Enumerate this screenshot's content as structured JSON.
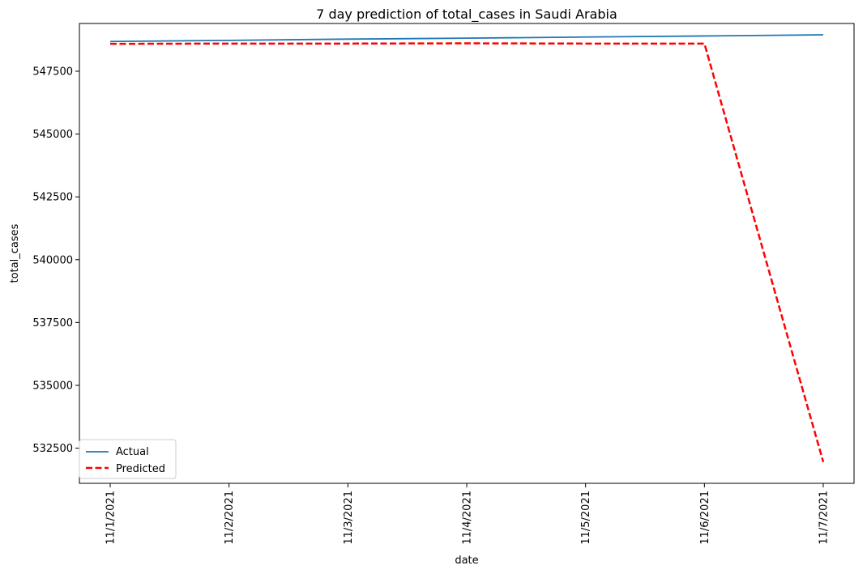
{
  "chart_data": {
    "type": "line",
    "title": "7 day prediction of total_cases in Saudi Arabia",
    "xlabel": "date",
    "ylabel": "total_cases",
    "categories": [
      "11/1/2021",
      "11/2/2021",
      "11/3/2021",
      "11/4/2021",
      "11/5/2021",
      "11/6/2021",
      "11/7/2021"
    ],
    "yticks": [
      532500,
      535000,
      537500,
      540000,
      542500,
      545000,
      547500
    ],
    "ylim": [
      531100,
      549400
    ],
    "grid": false,
    "legend_position": "lower-left",
    "series": [
      {
        "name": "Actual",
        "values": [
          548683,
          548728,
          548778,
          548815,
          548860,
          548903,
          548950
        ],
        "color": "#1f77b4",
        "style": "solid"
      },
      {
        "name": "Predicted",
        "values": [
          548590,
          548600,
          548600,
          548610,
          548600,
          548600,
          531950
        ],
        "color": "#ff0000",
        "style": "dashed"
      }
    ]
  }
}
